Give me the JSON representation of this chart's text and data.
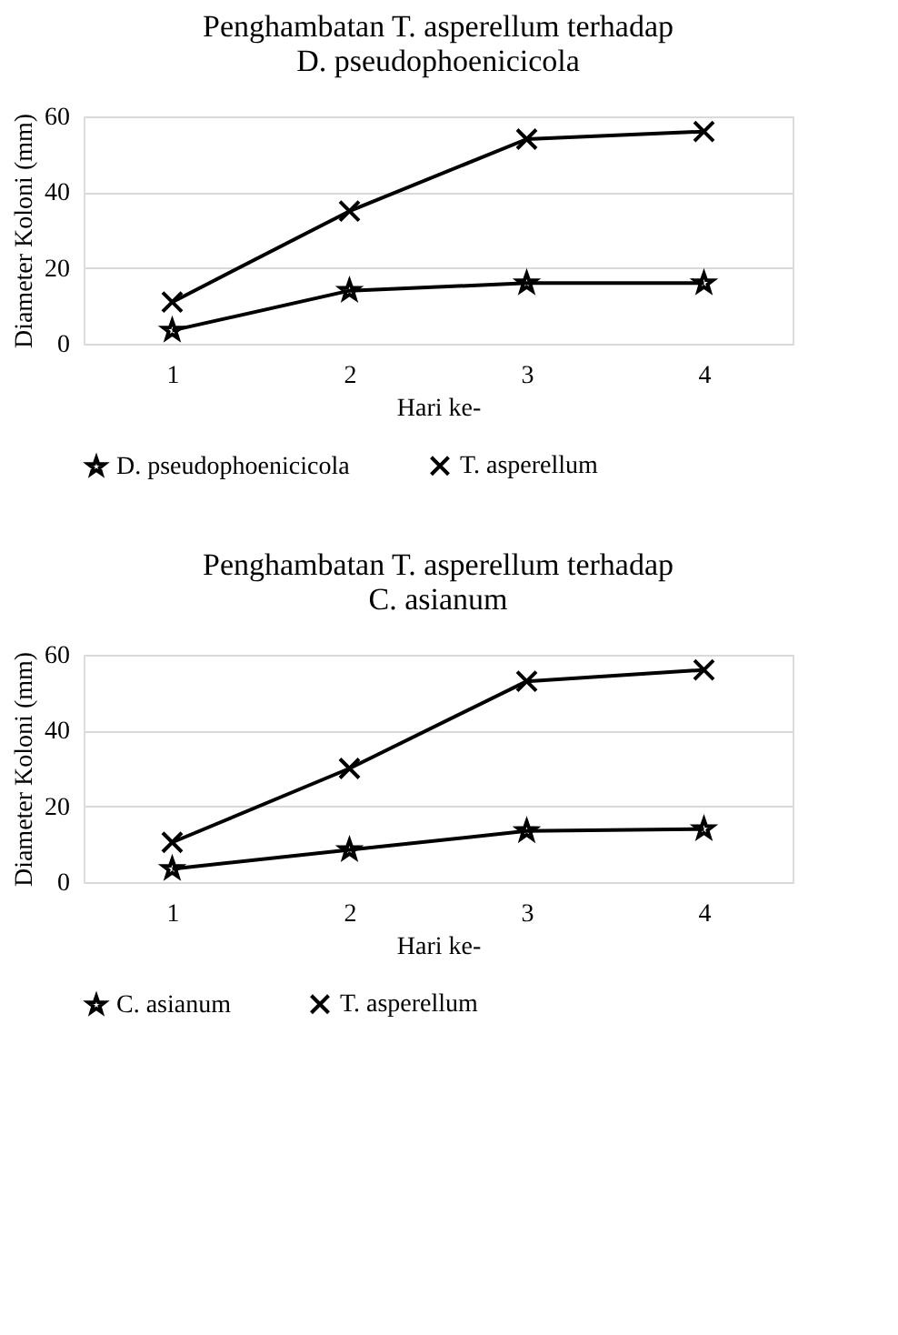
{
  "chart_data": [
    {
      "type": "line",
      "title": "Penghambatan T. asperellum terhadap\nD. pseudophoenicicola",
      "xlabel": "Hari ke-",
      "ylabel": "Diameter Koloni (mm)",
      "categories": [
        "1",
        "2",
        "3",
        "4"
      ],
      "ylim": [
        0,
        60
      ],
      "yticks": [
        0,
        20,
        40,
        60
      ],
      "grid": "y",
      "legend": "bottom",
      "line_style": "solid",
      "series": [
        {
          "name": "D. pseudophoenicicola",
          "color": "#000000",
          "marker": "star",
          "values": [
            3.5,
            14,
            16,
            16
          ]
        },
        {
          "name": "T. asperellum",
          "color": "#000000",
          "marker": "cross",
          "values": [
            11,
            35,
            54,
            56
          ]
        }
      ]
    },
    {
      "type": "line",
      "title": "Penghambatan T. asperellum terhadap\nC. asianum",
      "xlabel": "Hari ke-",
      "ylabel": "Diameter Koloni (mm)",
      "categories": [
        "1",
        "2",
        "3",
        "4"
      ],
      "ylim": [
        0,
        60
      ],
      "yticks": [
        0,
        20,
        40,
        60
      ],
      "grid": "y",
      "legend": "bottom",
      "line_style": "solid",
      "series": [
        {
          "name": "C. asianum",
          "color": "#000000",
          "marker": "star",
          "values": [
            3.5,
            8.5,
            13.5,
            14
          ]
        },
        {
          "name": "T. asperellum",
          "color": "#000000",
          "marker": "cross",
          "values": [
            10.5,
            30,
            53,
            56
          ]
        }
      ]
    }
  ]
}
